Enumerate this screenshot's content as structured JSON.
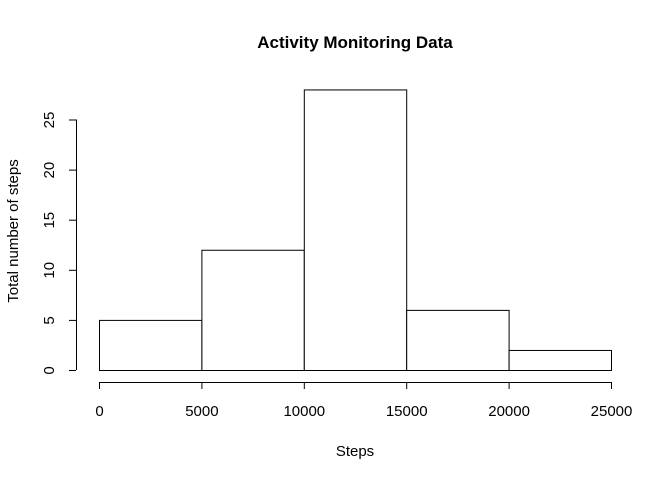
{
  "chart_data": {
    "type": "bar",
    "title": "Activity Monitoring Data",
    "xlabel": "Steps",
    "ylabel": "Total number of steps",
    "bins": [
      {
        "from": 0,
        "to": 5000,
        "count": 5
      },
      {
        "from": 5000,
        "to": 10000,
        "count": 12
      },
      {
        "from": 10000,
        "to": 15000,
        "count": 28
      },
      {
        "from": 15000,
        "to": 20000,
        "count": 6
      },
      {
        "from": 20000,
        "to": 25000,
        "count": 2
      }
    ],
    "xlim": [
      0,
      25000
    ],
    "ylim": [
      0,
      28
    ],
    "xticks": [
      0,
      5000,
      10000,
      15000,
      20000,
      25000
    ],
    "yticks": [
      0,
      5,
      10,
      15,
      20,
      25
    ],
    "grid": false,
    "legend": "none"
  }
}
